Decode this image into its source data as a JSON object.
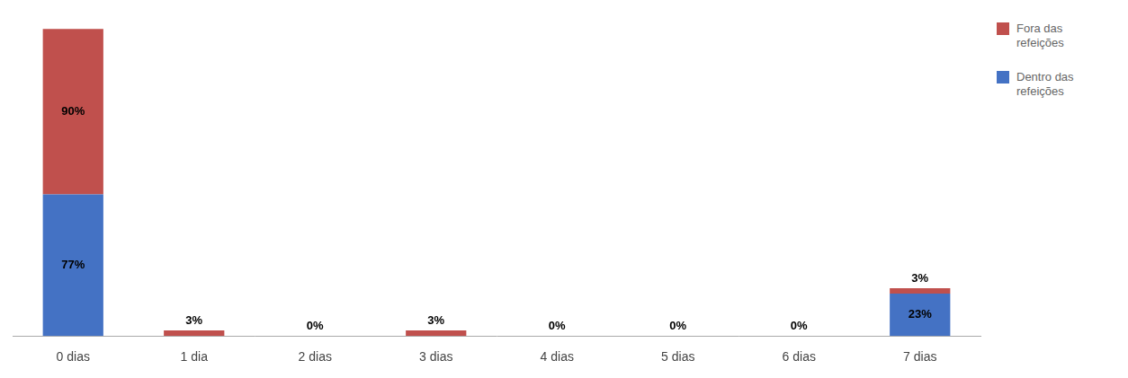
{
  "chart_data": {
    "type": "bar",
    "stacked": true,
    "categories": [
      "0 dias",
      "1 dia",
      "2 dias",
      "3 dias",
      "4 dias",
      "5 dias",
      "6 dias",
      "7 dias"
    ],
    "series": [
      {
        "name": "Dentro das\nrefeições",
        "color": "#4472C4",
        "values": [
          77,
          0,
          0,
          0,
          0,
          0,
          0,
          23
        ],
        "value_labels": [
          "77%",
          null,
          null,
          null,
          null,
          null,
          null,
          "23%"
        ]
      },
      {
        "name": "Fora das\nrefeições",
        "color": "#C0504D",
        "values": [
          90,
          3,
          0,
          3,
          0,
          0,
          0,
          3
        ],
        "value_labels": [
          "90%",
          "3%",
          "0%",
          "3%",
          "0%",
          "0%",
          "0%",
          "3%"
        ]
      }
    ],
    "ylim": [
      0,
      175
    ],
    "grid": false,
    "legend": "right",
    "tick_labels": "x"
  }
}
